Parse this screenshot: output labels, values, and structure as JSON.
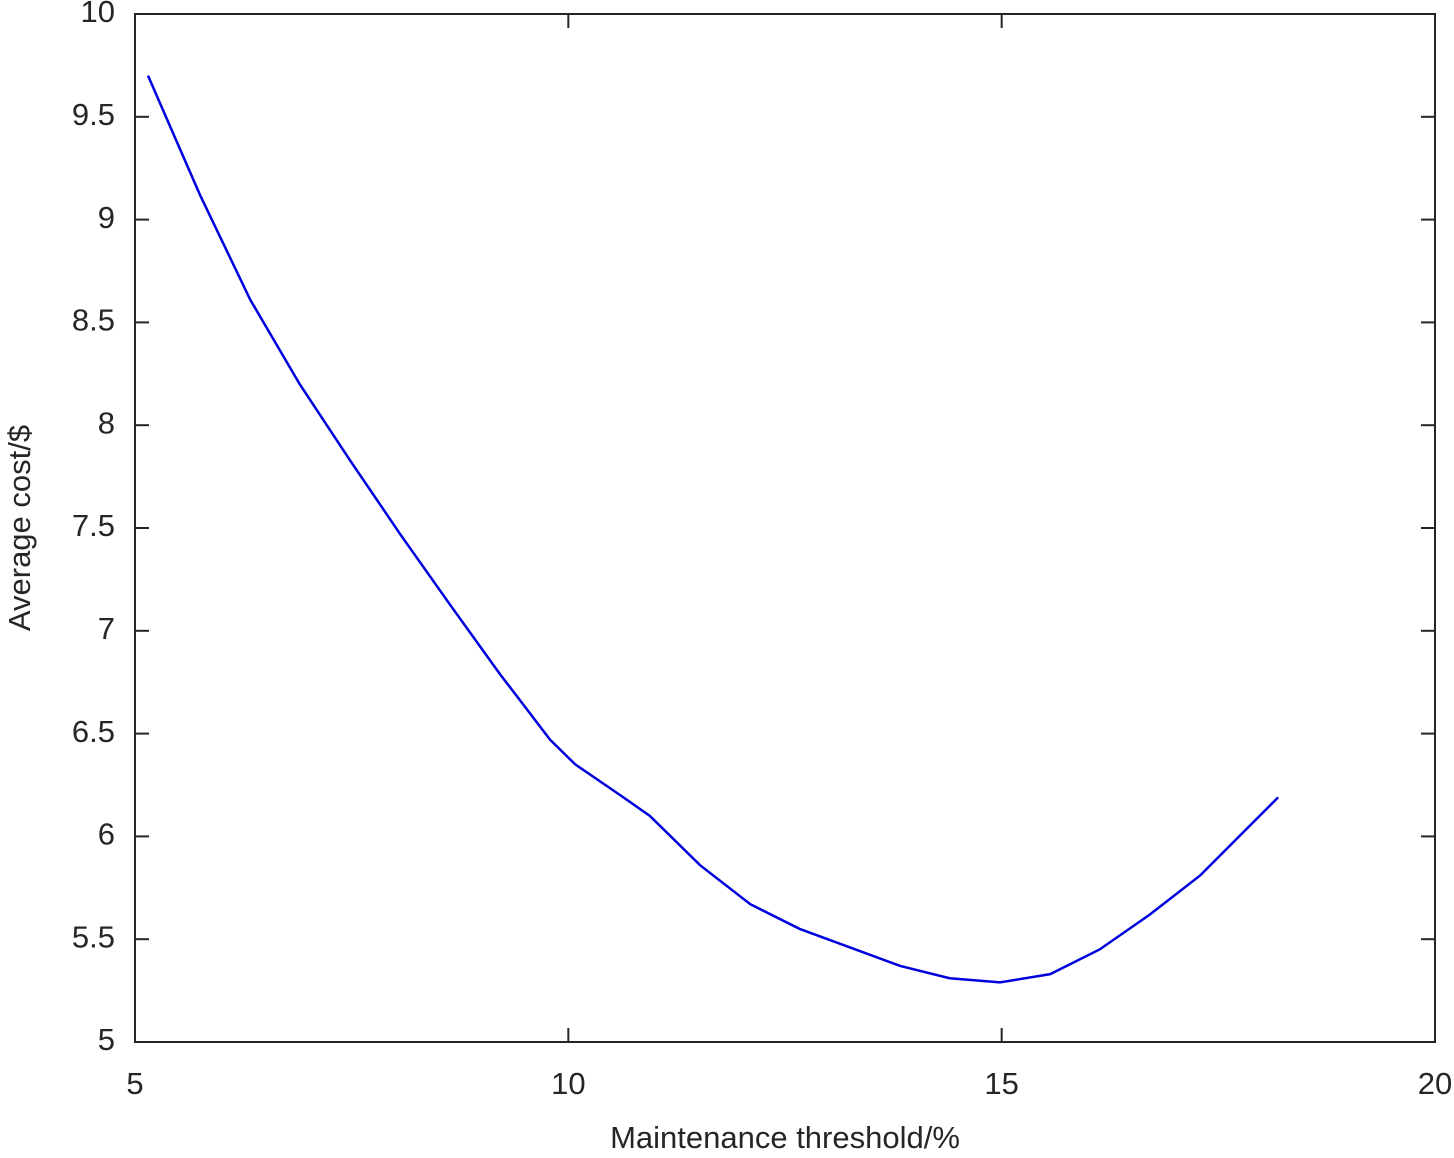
{
  "chart_data": {
    "type": "line",
    "x_label": "Maintenance threshold/%",
    "y_label": "Average cost/$",
    "x": [
      5.15,
      5.75,
      6.33,
      6.9,
      7.48,
      8.06,
      8.63,
      9.21,
      9.79,
      10.08,
      10.6,
      10.94,
      11.52,
      12.1,
      12.67,
      13.25,
      13.83,
      14.4,
      14.98,
      15.56,
      16.13,
      16.71,
      17.29,
      18.19
    ],
    "series": [
      {
        "color": "#0000dd",
        "values": [
          9.7,
          9.12,
          8.61,
          8.2,
          7.83,
          7.47,
          7.13,
          6.79,
          6.47,
          6.35,
          6.2,
          6.1,
          5.86,
          5.67,
          5.55,
          5.46,
          5.37,
          5.31,
          5.29,
          5.33,
          5.45,
          5.62,
          5.81,
          6.19
        ]
      }
    ],
    "xlim": [
      5,
      20
    ],
    "xticks": [
      5,
      10,
      15,
      20
    ],
    "ylim": [
      5,
      10
    ],
    "yticks": [
      5,
      5.5,
      6,
      6.5,
      7,
      7.5,
      8,
      8.5,
      9,
      9.5,
      10
    ],
    "grid": false
  }
}
